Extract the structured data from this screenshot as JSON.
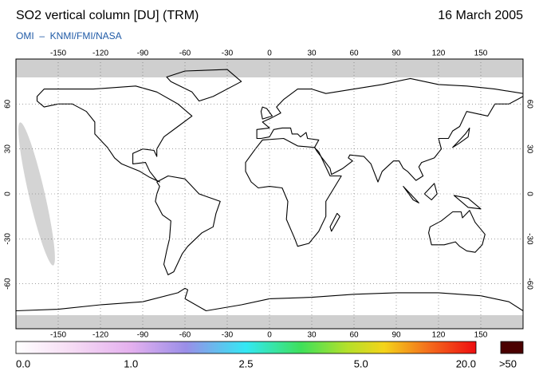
{
  "header": {
    "title": "SO2 vertical column [DU] (TRM)",
    "date": "16 March 2005",
    "subtitle": "OMI  –  KNMI/FMI/NASA"
  },
  "map": {
    "lon_ticks": [
      -150,
      -120,
      -90,
      -60,
      -30,
      0,
      30,
      60,
      90,
      120,
      150
    ],
    "lat_ticks": [
      60,
      30,
      0,
      -30,
      -60
    ]
  },
  "colorbar": {
    "labels": [
      "0.0",
      "1.0",
      "2.5",
      "5.0",
      "20.0"
    ],
    "overflow_label": ">50"
  }
}
